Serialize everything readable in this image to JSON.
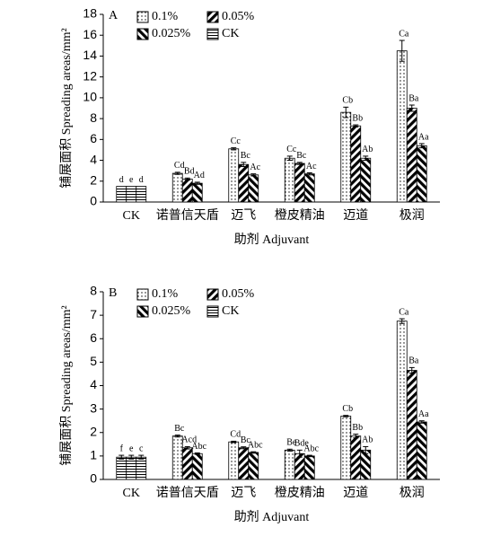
{
  "chart_data": [
    {
      "type": "bar",
      "panel": "A",
      "ylabel": "铺展面积 Spreading areas/mm²",
      "xlabel": "助剂 Adjuvant",
      "categories": [
        "CK",
        "诺普信天盾",
        "迈飞",
        "橙皮精油",
        "迈道",
        "极润"
      ],
      "series": [
        {
          "name": "0.1%",
          "pattern": "dots",
          "values": [
            1.5,
            2.75,
            5.1,
            4.2,
            8.6,
            14.5
          ],
          "errors": [
            0,
            0.1,
            0.1,
            0.2,
            0.5,
            1.0
          ],
          "value_labels": [
            "d",
            "Cd",
            "Cc",
            "Cc",
            "Cb",
            "Ca"
          ]
        },
        {
          "name": "0.05%",
          "pattern": "fwd",
          "values": [
            1.5,
            2.2,
            3.6,
            3.7,
            7.3,
            9.0
          ],
          "errors": [
            0,
            0.1,
            0.2,
            0.1,
            0.1,
            0.3
          ],
          "value_labels": [
            "e",
            "Bd",
            "Bc",
            "Bc",
            "Bb",
            "Ba"
          ]
        },
        {
          "name": "0.025%",
          "pattern": "back",
          "values": [
            1.5,
            1.8,
            2.6,
            2.7,
            4.2,
            5.4
          ],
          "errors": [
            0,
            0.1,
            0.1,
            0.1,
            0.2,
            0.2
          ],
          "value_labels": [
            "d",
            "Ad",
            "Ac",
            "Ac",
            "Ab",
            "Aa"
          ]
        }
      ],
      "control": {
        "name": "CK",
        "pattern": "hlines"
      },
      "ylim": [
        0,
        18
      ],
      "yticks": [
        0,
        2,
        4,
        6,
        8,
        10,
        12,
        14,
        16,
        18
      ]
    },
    {
      "type": "bar",
      "panel": "B",
      "ylabel": "铺展面积 Spreading areas/mm²",
      "xlabel": "助剂 Adjuvant",
      "categories": [
        "CK",
        "诺普信天盾",
        "迈飞",
        "橙皮精油",
        "迈道",
        "极润"
      ],
      "series": [
        {
          "name": "0.1%",
          "pattern": "dots",
          "values": [
            0.95,
            1.85,
            1.6,
            1.25,
            2.7,
            6.75
          ],
          "errors": [
            0.08,
            0.04,
            0.03,
            0.04,
            0.03,
            0.1
          ],
          "value_labels": [
            "f",
            "Bc",
            "Cd",
            "Be",
            "Cb",
            "Ca"
          ]
        },
        {
          "name": "0.05%",
          "pattern": "fwd",
          "values": [
            0.95,
            1.35,
            1.35,
            1.1,
            1.85,
            4.65
          ],
          "errors": [
            0.08,
            0.05,
            0.04,
            0.15,
            0.08,
            0.12
          ],
          "value_labels": [
            "e",
            "Acd",
            "Bc",
            "Bde",
            "Bb",
            "Ba"
          ]
        },
        {
          "name": "0.025%",
          "pattern": "back",
          "values": [
            0.95,
            1.1,
            1.15,
            1.0,
            1.25,
            2.45
          ],
          "errors": [
            0.08,
            0.03,
            0.03,
            0.03,
            0.15,
            0.05
          ],
          "value_labels": [
            "c",
            "Abc",
            "Abc",
            "Abc",
            "Ab",
            "Aa"
          ]
        }
      ],
      "control": {
        "name": "CK",
        "pattern": "hlines"
      },
      "ylim": [
        0,
        8
      ],
      "yticks": [
        0,
        1,
        2,
        3,
        4,
        5,
        6,
        7,
        8
      ]
    }
  ]
}
